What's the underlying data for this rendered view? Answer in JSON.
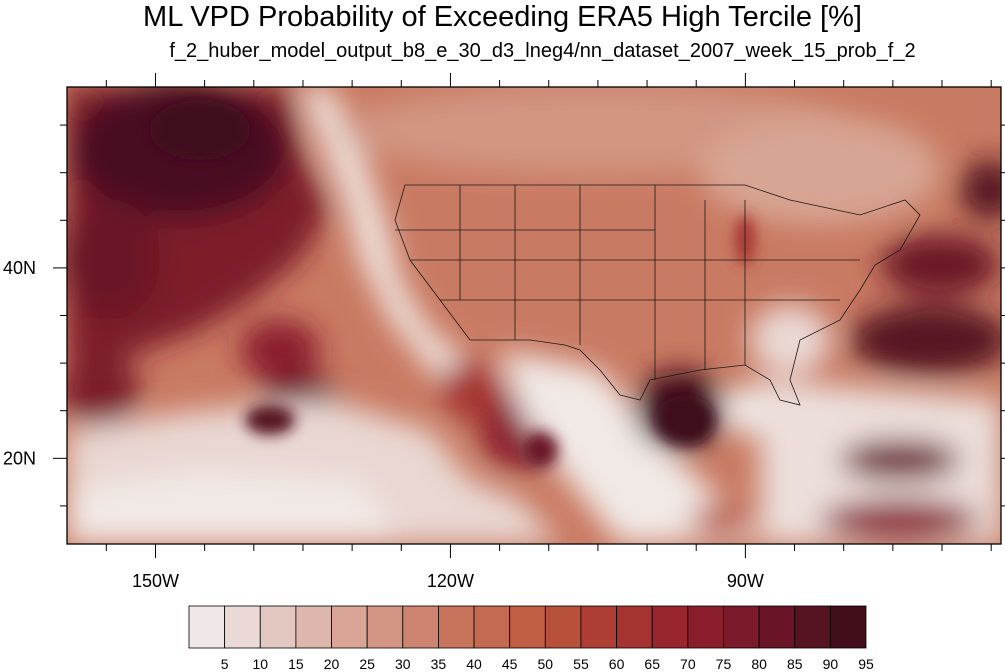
{
  "title": "ML VPD Probability of Exceeding ERA5 High Tercile [%]",
  "subtitle": "f_2_huber_model_output_b8_e_30_d3_lneg4/nn_dataset_2007_week_15_prob_f_2",
  "map": {
    "lon_ticks": [
      {
        "value": -150,
        "label": "150W"
      },
      {
        "value": -120,
        "label": "120W"
      },
      {
        "value": -90,
        "label": "90W"
      }
    ],
    "lat_ticks": [
      {
        "value": 40,
        "label": "40N"
      },
      {
        "value": 20,
        "label": "20N"
      }
    ],
    "lon_range": [
      -159,
      -64
    ],
    "lat_range": [
      11,
      59
    ]
  },
  "colorbar": {
    "labels": [
      "5",
      "10",
      "15",
      "20",
      "25",
      "30",
      "35",
      "40",
      "45",
      "50",
      "55",
      "60",
      "65",
      "70",
      "75",
      "80",
      "85",
      "90",
      "95"
    ],
    "colors": [
      "#efe8e6",
      "#ead9d6",
      "#e3c8c1",
      "#ddb7ad",
      "#d8a597",
      "#d39583",
      "#cd8470",
      "#c8735c",
      "#c46a50",
      "#c05e44",
      "#b8513a",
      "#ae3e33",
      "#a53430",
      "#99252e",
      "#8a1e2d",
      "#7b1a2b",
      "#6a1527",
      "#561322",
      "#410e1a"
    ]
  }
}
